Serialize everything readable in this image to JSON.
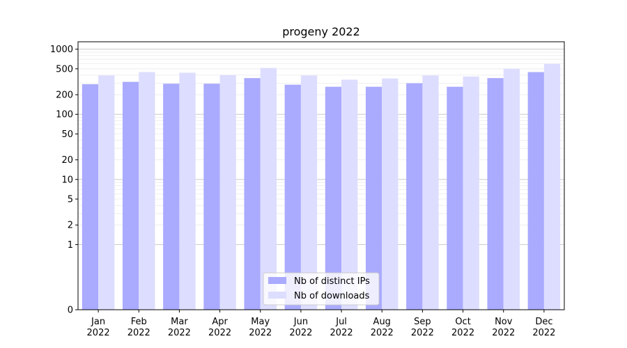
{
  "chart_data": {
    "type": "bar",
    "title": "progeny 2022",
    "categories": [
      {
        "month": "Jan",
        "year": "2022"
      },
      {
        "month": "Feb",
        "year": "2022"
      },
      {
        "month": "Mar",
        "year": "2022"
      },
      {
        "month": "Apr",
        "year": "2022"
      },
      {
        "month": "May",
        "year": "2022"
      },
      {
        "month": "Jun",
        "year": "2022"
      },
      {
        "month": "Jul",
        "year": "2022"
      },
      {
        "month": "Aug",
        "year": "2022"
      },
      {
        "month": "Sep",
        "year": "2022"
      },
      {
        "month": "Oct",
        "year": "2022"
      },
      {
        "month": "Nov",
        "year": "2022"
      },
      {
        "month": "Dec",
        "year": "2022"
      }
    ],
    "series": [
      {
        "name": "Nb of distinct IPs",
        "color": "#aaaaff",
        "values": [
          290,
          315,
          295,
          295,
          360,
          285,
          265,
          265,
          300,
          265,
          360,
          445
        ]
      },
      {
        "name": "Nb of downloads",
        "color": "#ddddff",
        "values": [
          395,
          445,
          435,
          400,
          515,
          395,
          340,
          355,
          395,
          380,
          500,
          595
        ]
      }
    ],
    "y_scale": "symlog",
    "ylim": [
      0,
      1300
    ],
    "y_ticks": [
      0,
      1,
      2,
      5,
      10,
      20,
      50,
      100,
      200,
      500,
      1000
    ],
    "y_tick_labels": [
      "0",
      "1",
      "2",
      "5",
      "10",
      "20",
      "50",
      "100",
      "200",
      "500",
      "1000"
    ],
    "grid": true,
    "legend_position": "bottom-center"
  }
}
